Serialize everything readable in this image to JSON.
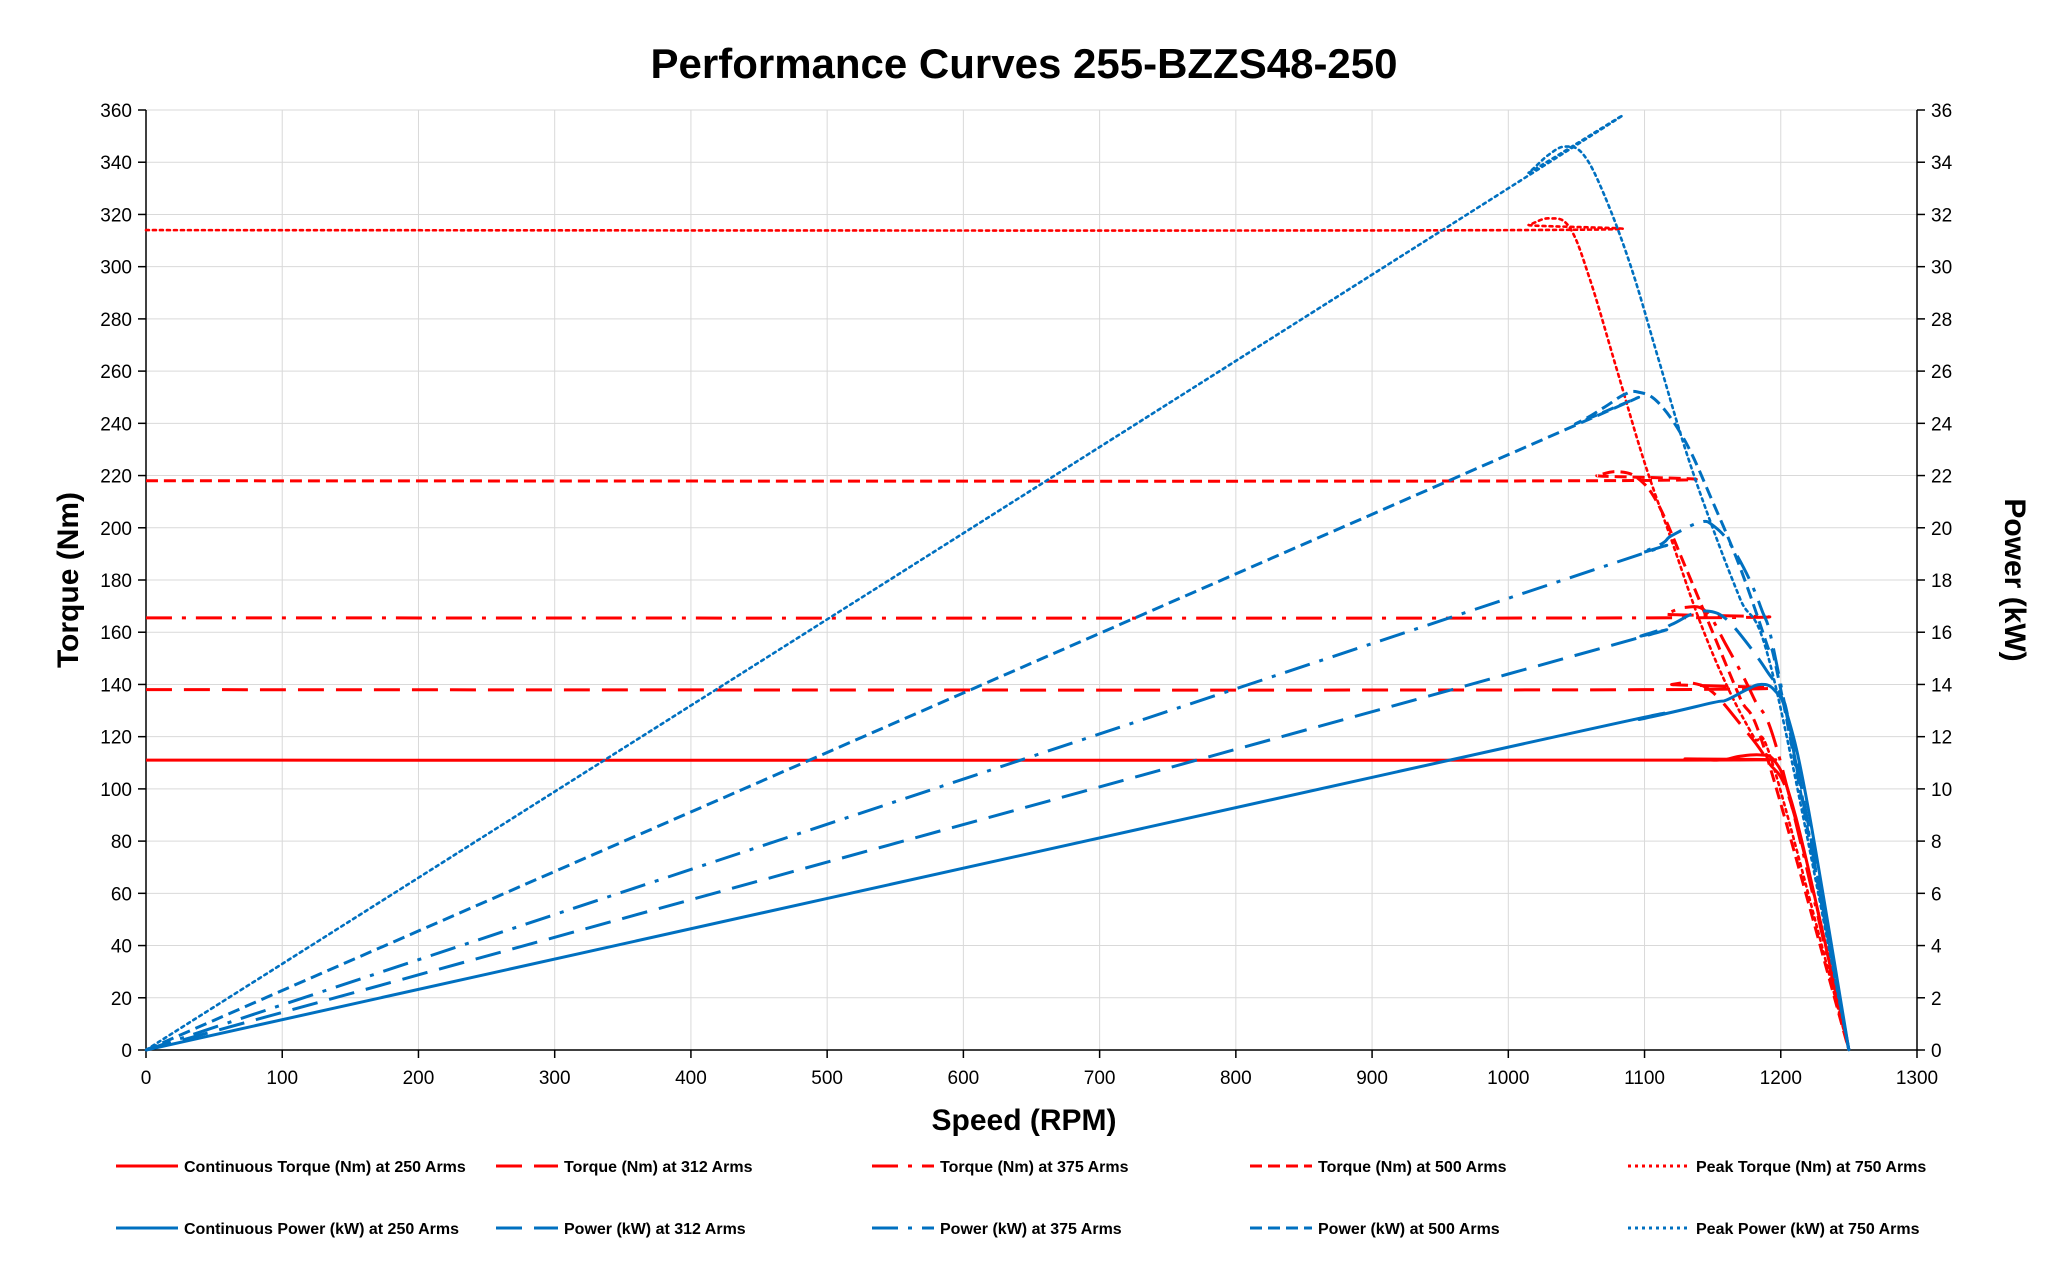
{
  "chart_data": {
    "type": "line",
    "title": "Performance Curves 255-BZZS48-250",
    "xlabel": "Speed (RPM)",
    "ylabel": "Torque (Nm)",
    "y2label": "Power (kW)",
    "xlim": [
      0,
      1300
    ],
    "ylim": [
      0,
      360
    ],
    "y2lim": [
      0,
      36
    ],
    "x_ticks": [
      "0",
      "100",
      "200",
      "300",
      "400",
      "500",
      "600",
      "700",
      "800",
      "900",
      "1000",
      "1100",
      "1200",
      "1300"
    ],
    "y_ticks": [
      "0",
      "20",
      "40",
      "60",
      "80",
      "100",
      "120",
      "140",
      "160",
      "180",
      "200",
      "220",
      "240",
      "260",
      "280",
      "300",
      "320",
      "340",
      "360"
    ],
    "y2_ticks": [
      "0",
      "2",
      "4",
      "6",
      "8",
      "10",
      "12",
      "14",
      "16",
      "18",
      "20",
      "22",
      "24",
      "26",
      "28",
      "30",
      "32",
      "34",
      "36"
    ],
    "grid": true,
    "legend_position": "bottom",
    "colors": {
      "torque": "#ff0000",
      "power": "#0070c0"
    },
    "series": [
      {
        "name": "Continuous Torque (Nm) at 250 Arms",
        "axis": "left",
        "color": "#ff0000",
        "style": "solid",
        "points": [
          [
            0,
            111
          ],
          [
            1100,
            111
          ],
          [
            1130,
            111.5
          ],
          [
            1155,
            111
          ],
          [
            1170,
            112.5
          ],
          [
            1185,
            113
          ],
          [
            1195,
            111
          ],
          [
            1205,
            100
          ],
          [
            1220,
            70
          ],
          [
            1250,
            0
          ]
        ]
      },
      {
        "name": "Torque (Nm) at 312 Arms",
        "axis": "left",
        "color": "#ff0000",
        "style": "dash",
        "points": [
          [
            0,
            138
          ],
          [
            1100,
            138
          ],
          [
            1120,
            140
          ],
          [
            1135,
            140.5
          ],
          [
            1150,
            137
          ],
          [
            1170,
            125
          ],
          [
            1190,
            111
          ],
          [
            1210,
            90
          ],
          [
            1250,
            0
          ]
        ]
      },
      {
        "name": "Torque (Nm) at 375 Arms",
        "axis": "left",
        "color": "#ff0000",
        "style": "dashdot",
        "points": [
          [
            0,
            165.5
          ],
          [
            1100,
            165.5
          ],
          [
            1115,
            167
          ],
          [
            1130,
            169.5
          ],
          [
            1145,
            168
          ],
          [
            1160,
            155
          ],
          [
            1180,
            135
          ],
          [
            1200,
            110
          ],
          [
            1250,
            0
          ]
        ]
      },
      {
        "name": "Torque (Nm) at 500 Arms",
        "axis": "left",
        "color": "#ff0000",
        "style": "shortdash",
        "points": [
          [
            0,
            218
          ],
          [
            1050,
            218
          ],
          [
            1065,
            220
          ],
          [
            1080,
            221.5
          ],
          [
            1095,
            219
          ],
          [
            1110,
            209
          ],
          [
            1130,
            185
          ],
          [
            1150,
            160
          ],
          [
            1170,
            135
          ],
          [
            1190,
            112
          ],
          [
            1250,
            0
          ]
        ]
      },
      {
        "name": "Peak Torque (Nm) at 750  Arms",
        "axis": "left",
        "color": "#ff0000",
        "style": "dot",
        "points": [
          [
            0,
            314
          ],
          [
            1000,
            314
          ],
          [
            1015,
            316
          ],
          [
            1030,
            318.5
          ],
          [
            1045,
            315
          ],
          [
            1060,
            295
          ],
          [
            1080,
            260
          ],
          [
            1100,
            225
          ],
          [
            1120,
            195
          ],
          [
            1140,
            165
          ],
          [
            1160,
            140
          ],
          [
            1180,
            120
          ],
          [
            1195,
            108
          ],
          [
            1250,
            0
          ]
        ]
      },
      {
        "name": "Continuous Power (kW) at 250 Arms",
        "axis": "right",
        "color": "#0070c0",
        "style": "solid",
        "points": [
          [
            0,
            0
          ],
          [
            1000,
            11.6
          ],
          [
            1100,
            12.7
          ],
          [
            1150,
            13.3
          ],
          [
            1160,
            13.4
          ],
          [
            1175,
            13.8
          ],
          [
            1185,
            14
          ],
          [
            1195,
            13.8
          ],
          [
            1205,
            12.8
          ],
          [
            1220,
            9.3
          ],
          [
            1250,
            0
          ]
        ]
      },
      {
        "name": "Power (kW) at 312 Arms",
        "axis": "right",
        "color": "#0070c0",
        "style": "dash",
        "points": [
          [
            0,
            0
          ],
          [
            1000,
            14.4
          ],
          [
            1100,
            15.9
          ],
          [
            1120,
            16.3
          ],
          [
            1135,
            16.7
          ],
          [
            1148,
            16.8
          ],
          [
            1160,
            16.5
          ],
          [
            1175,
            15.6
          ],
          [
            1190,
            14.5
          ],
          [
            1200,
            13.6
          ],
          [
            1210,
            11.5
          ],
          [
            1250,
            0
          ]
        ]
      },
      {
        "name": "Power (kW) at 375 Arms",
        "axis": "right",
        "color": "#0070c0",
        "style": "dashdot",
        "points": [
          [
            0,
            0
          ],
          [
            1000,
            17.3
          ],
          [
            1100,
            19.1
          ],
          [
            1120,
            19.7
          ],
          [
            1140,
            20.2
          ],
          [
            1150,
            20.1
          ],
          [
            1165,
            19.2
          ],
          [
            1185,
            17
          ],
          [
            1200,
            14
          ],
          [
            1250,
            0
          ]
        ]
      },
      {
        "name": "Power (kW) at 500 Arms",
        "axis": "right",
        "color": "#0070c0",
        "style": "shortdash",
        "points": [
          [
            0,
            0
          ],
          [
            1000,
            22.8
          ],
          [
            1050,
            24
          ],
          [
            1070,
            24.6
          ],
          [
            1085,
            25.1
          ],
          [
            1095,
            25.2
          ],
          [
            1110,
            24.8
          ],
          [
            1130,
            23.3
          ],
          [
            1150,
            21
          ],
          [
            1170,
            18.5
          ],
          [
            1190,
            15.5
          ],
          [
            1200,
            13.8
          ],
          [
            1250,
            0
          ]
        ]
      },
      {
        "name": "Peak Power (kW) at 750 Arms",
        "axis": "right",
        "color": "#0070c0",
        "style": "dot",
        "points": [
          [
            0,
            0
          ],
          [
            1000,
            33
          ],
          [
            1015,
            33.6
          ],
          [
            1030,
            34.3
          ],
          [
            1042,
            34.6
          ],
          [
            1055,
            34.3
          ],
          [
            1070,
            32.8
          ],
          [
            1090,
            30
          ],
          [
            1110,
            26.5
          ],
          [
            1130,
            23
          ],
          [
            1150,
            20
          ],
          [
            1170,
            17.3
          ],
          [
            1195,
            14.2
          ],
          [
            1250,
            0
          ]
        ]
      }
    ]
  }
}
